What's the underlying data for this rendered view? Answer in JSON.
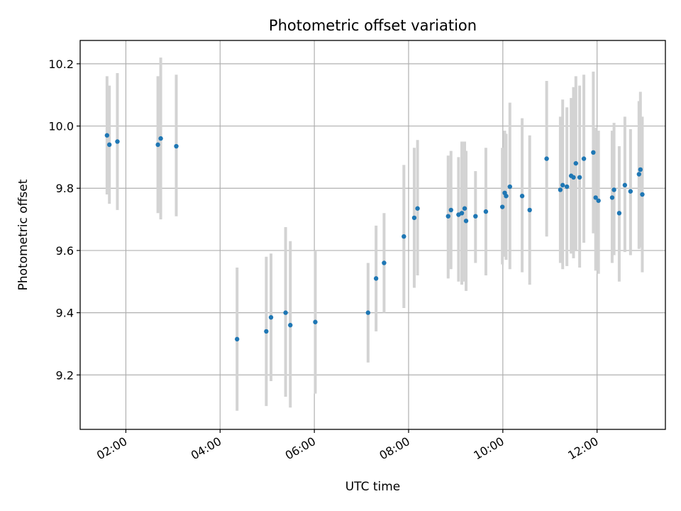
{
  "chart_data": {
    "type": "scatter",
    "title": "Photometric offset variation",
    "xlabel": "UTC time",
    "ylabel": "Photometric offset",
    "x_unit": "hours UTC",
    "xlim": [
      1.03,
      13.45
    ],
    "ylim": [
      9.025,
      10.275
    ],
    "x_ticks": [
      {
        "value": 2,
        "label": "02:00"
      },
      {
        "value": 4,
        "label": "04:00"
      },
      {
        "value": 6,
        "label": "06:00"
      },
      {
        "value": 8,
        "label": "08:00"
      },
      {
        "value": 10,
        "label": "10:00"
      },
      {
        "value": 12,
        "label": "12:00"
      }
    ],
    "y_ticks": [
      {
        "value": 9.2,
        "label": "9.2"
      },
      {
        "value": 9.4,
        "label": "9.4"
      },
      {
        "value": 9.6,
        "label": "9.6"
      },
      {
        "value": 9.8,
        "label": "9.8"
      },
      {
        "value": 10.0,
        "label": "10.0"
      },
      {
        "value": 10.2,
        "label": "10.2"
      }
    ],
    "grid": true,
    "marker_color": "#1f77b4",
    "errorbar_color": "#d3d3d3",
    "points": [
      {
        "x": 1.6,
        "y": 9.97,
        "lo": 9.78,
        "hi": 10.16
      },
      {
        "x": 1.65,
        "y": 9.94,
        "lo": 9.75,
        "hi": 10.13
      },
      {
        "x": 1.82,
        "y": 9.95,
        "lo": 9.73,
        "hi": 10.17
      },
      {
        "x": 2.68,
        "y": 9.94,
        "lo": 9.72,
        "hi": 10.16
      },
      {
        "x": 2.74,
        "y": 9.96,
        "lo": 9.7,
        "hi": 10.22
      },
      {
        "x": 3.07,
        "y": 9.935,
        "lo": 9.71,
        "hi": 10.165
      },
      {
        "x": 4.36,
        "y": 9.315,
        "lo": 9.085,
        "hi": 9.545
      },
      {
        "x": 4.98,
        "y": 9.34,
        "lo": 9.1,
        "hi": 9.58
      },
      {
        "x": 5.08,
        "y": 9.385,
        "lo": 9.18,
        "hi": 9.59
      },
      {
        "x": 5.39,
        "y": 9.4,
        "lo": 9.13,
        "hi": 9.675
      },
      {
        "x": 5.49,
        "y": 9.36,
        "lo": 9.095,
        "hi": 9.63
      },
      {
        "x": 6.02,
        "y": 9.37,
        "lo": 9.14,
        "hi": 9.6
      },
      {
        "x": 7.14,
        "y": 9.4,
        "lo": 9.24,
        "hi": 9.56
      },
      {
        "x": 7.31,
        "y": 9.51,
        "lo": 9.34,
        "hi": 9.68
      },
      {
        "x": 7.48,
        "y": 9.56,
        "lo": 9.4,
        "hi": 9.72
      },
      {
        "x": 7.9,
        "y": 9.645,
        "lo": 9.415,
        "hi": 9.875
      },
      {
        "x": 8.12,
        "y": 9.705,
        "lo": 9.48,
        "hi": 9.93
      },
      {
        "x": 8.19,
        "y": 9.735,
        "lo": 9.52,
        "hi": 9.955
      },
      {
        "x": 8.84,
        "y": 9.71,
        "lo": 9.51,
        "hi": 9.905
      },
      {
        "x": 8.9,
        "y": 9.73,
        "lo": 9.54,
        "hi": 9.92
      },
      {
        "x": 9.06,
        "y": 9.715,
        "lo": 9.5,
        "hi": 9.9
      },
      {
        "x": 9.13,
        "y": 9.72,
        "lo": 9.49,
        "hi": 9.95
      },
      {
        "x": 9.19,
        "y": 9.735,
        "lo": 9.5,
        "hi": 9.95
      },
      {
        "x": 9.22,
        "y": 9.695,
        "lo": 9.47,
        "hi": 9.92
      },
      {
        "x": 9.42,
        "y": 9.71,
        "lo": 9.56,
        "hi": 9.855
      },
      {
        "x": 9.64,
        "y": 9.725,
        "lo": 9.52,
        "hi": 9.93
      },
      {
        "x": 9.99,
        "y": 9.74,
        "lo": 9.555,
        "hi": 9.93
      },
      {
        "x": 10.04,
        "y": 9.785,
        "lo": 9.58,
        "hi": 9.985
      },
      {
        "x": 10.07,
        "y": 9.775,
        "lo": 9.57,
        "hi": 9.975
      },
      {
        "x": 10.15,
        "y": 9.805,
        "lo": 9.54,
        "hi": 10.075
      },
      {
        "x": 10.41,
        "y": 9.775,
        "lo": 9.53,
        "hi": 10.025
      },
      {
        "x": 10.57,
        "y": 9.73,
        "lo": 9.49,
        "hi": 9.97
      },
      {
        "x": 10.93,
        "y": 9.895,
        "lo": 9.645,
        "hi": 10.145
      },
      {
        "x": 11.22,
        "y": 9.795,
        "lo": 9.56,
        "hi": 10.03
      },
      {
        "x": 11.27,
        "y": 9.81,
        "lo": 9.54,
        "hi": 10.085
      },
      {
        "x": 11.36,
        "y": 9.805,
        "lo": 9.55,
        "hi": 10.06
      },
      {
        "x": 11.45,
        "y": 9.84,
        "lo": 9.59,
        "hi": 10.09
      },
      {
        "x": 11.5,
        "y": 9.835,
        "lo": 9.575,
        "hi": 10.125
      },
      {
        "x": 11.55,
        "y": 9.88,
        "lo": 9.6,
        "hi": 10.16
      },
      {
        "x": 11.63,
        "y": 9.835,
        "lo": 9.545,
        "hi": 10.13
      },
      {
        "x": 11.72,
        "y": 9.895,
        "lo": 9.625,
        "hi": 10.165
      },
      {
        "x": 11.92,
        "y": 9.915,
        "lo": 9.655,
        "hi": 10.175
      },
      {
        "x": 11.97,
        "y": 9.77,
        "lo": 9.535,
        "hi": 9.995
      },
      {
        "x": 12.03,
        "y": 9.76,
        "lo": 9.525,
        "hi": 9.985
      },
      {
        "x": 12.32,
        "y": 9.77,
        "lo": 9.56,
        "hi": 9.985
      },
      {
        "x": 12.36,
        "y": 9.795,
        "lo": 9.585,
        "hi": 10.01
      },
      {
        "x": 12.47,
        "y": 9.72,
        "lo": 9.5,
        "hi": 9.935
      },
      {
        "x": 12.59,
        "y": 9.81,
        "lo": 9.595,
        "hi": 10.03
      },
      {
        "x": 12.71,
        "y": 9.79,
        "lo": 9.585,
        "hi": 9.99
      },
      {
        "x": 12.89,
        "y": 9.845,
        "lo": 9.605,
        "hi": 10.08
      },
      {
        "x": 12.92,
        "y": 9.86,
        "lo": 9.61,
        "hi": 10.11
      },
      {
        "x": 12.96,
        "y": 9.78,
        "lo": 9.53,
        "hi": 10.03
      }
    ]
  }
}
